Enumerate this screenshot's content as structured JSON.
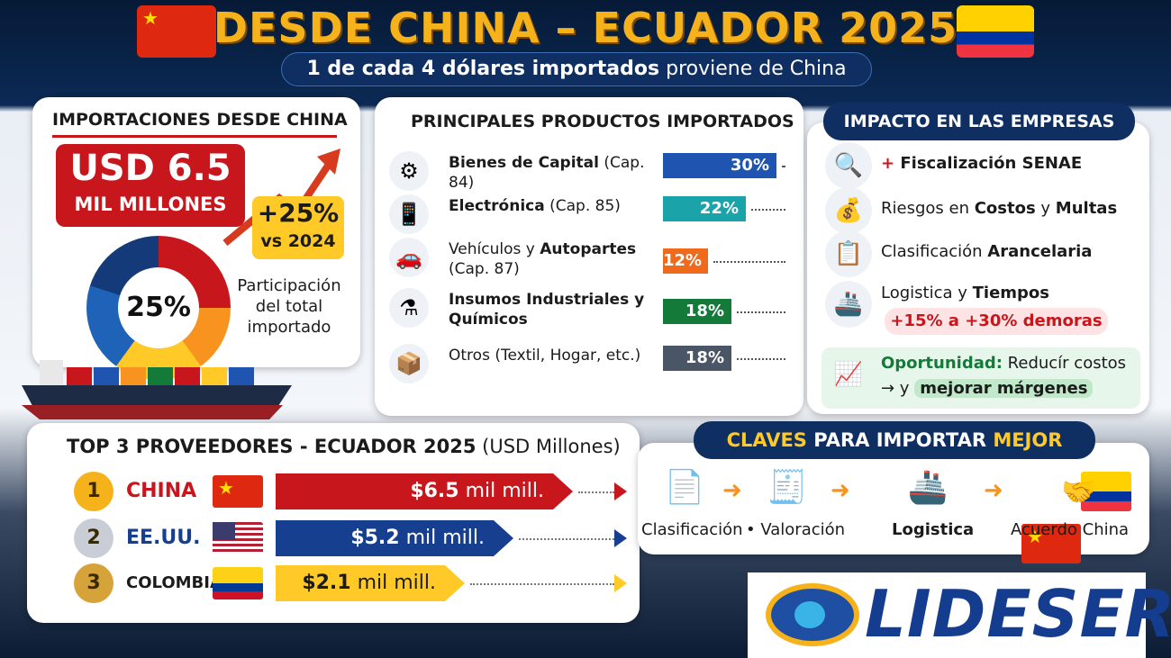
{
  "header": {
    "title": "DESDE CHINA – ECUADOR 2025",
    "subtitle_bold": "1 de cada 4 dólares importados",
    "subtitle_rest": " proviene de China"
  },
  "imports": {
    "title": "IMPORTACIONES DESDE CHINA",
    "amount": "USD 6.5",
    "amount_unit": "MIL MILLONES",
    "growth": "+25%",
    "growth_label": "vs 2024",
    "share_value": "25%",
    "share_label": "Participación del total importado",
    "share_fraction": 0.25
  },
  "products": {
    "title": "PRINCIPALES PRODUCTOS IMPORTADOS",
    "items": [
      {
        "bold": "Bienes de Capital",
        "pre": "",
        "post": " (Cap. 84)",
        "value": "30%",
        "pct": 30,
        "color": "#1f55b0",
        "icon": "⚙"
      },
      {
        "bold": "Electrónica",
        "pre": "",
        "post": " (Cap. 85)",
        "value": "22%",
        "pct": 22,
        "color": "#1aa3a8",
        "icon": "📱"
      },
      {
        "bold": "Autopartes",
        "pre": "Vehículos y ",
        "post": " (Cap. 87)",
        "value": "12%",
        "pct": 12,
        "color": "#f06a1c",
        "icon": "🚗"
      },
      {
        "bold": "Insumos Industriales y Químicos",
        "pre": "",
        "post": "",
        "value": "18%",
        "pct": 18,
        "color": "#137a3a",
        "icon": "⚗"
      },
      {
        "bold": "",
        "pre": "Otros (Textil, Hogar, etc.)",
        "post": "",
        "value": "18%",
        "pct": 18,
        "color": "#4a5566",
        "icon": "📦"
      }
    ]
  },
  "impact": {
    "title": "IMPACTO EN LAS EMPRESAS",
    "r1_plus": "+",
    "r1_text": " Fiscalización SENAE",
    "r2_pre": "Riesgos en ",
    "r2_b1": "Costos",
    "r2_mid": " y ",
    "r2_b2": "Multas",
    "r3_pre": "Clasificación ",
    "r3_b": "Arancelaria",
    "r4_pre": "Logistica y ",
    "r4_b": "Tiempos",
    "r4_delay": "+15% a +30% demoras",
    "r5_b": "Oportunidad:",
    "r5_text": " Reducír costos",
    "r5_line2_pre": "→ y ",
    "r5_line2_b": "mejorar márgenes"
  },
  "top3": {
    "title": "TOP 3 PROVEEDORES - ECUADOR 2025",
    "title_unit": " (USD Millones)",
    "items": [
      {
        "rank": "1",
        "country": "CHINA",
        "value_num": "$6.5",
        "value_unit": " mil mill.",
        "amount": 6.5,
        "bar_color": "#c8161d",
        "text_color": "#ffffff",
        "country_color": "#c8161d",
        "flag": "cn",
        "medal": "#f6b21b"
      },
      {
        "rank": "2",
        "country": "EE.UU.",
        "value_num": "$5.2",
        "value_unit": " mil mill.",
        "amount": 5.2,
        "bar_color": "#173f8f",
        "text_color": "#ffffff",
        "country_color": "#173f8f",
        "flag": "us",
        "medal": "#c9ced6"
      },
      {
        "rank": "3",
        "country": "COLOMBIA",
        "value_num": "$2.1",
        "value_unit": " mil mill.",
        "amount": 2.1,
        "bar_color": "#ffc928",
        "text_color": "#1b1b1b",
        "country_color": "#1b1b1b",
        "flag": "co",
        "medal": "#d6a23a"
      }
    ]
  },
  "keys": {
    "title_y1": "CLAVES",
    "title_mid": " PARA IMPORTAR ",
    "title_y2": "MEJOR",
    "steps": [
      {
        "label": "Clasificación",
        "icon": "📄"
      },
      {
        "label": "• Valoración",
        "icon": "🧾"
      },
      {
        "label": "Logistica",
        "icon": "🚢"
      },
      {
        "label": "Acuerdo China",
        "icon": "🤝"
      }
    ]
  },
  "logo": {
    "text": "LIDESER"
  }
}
